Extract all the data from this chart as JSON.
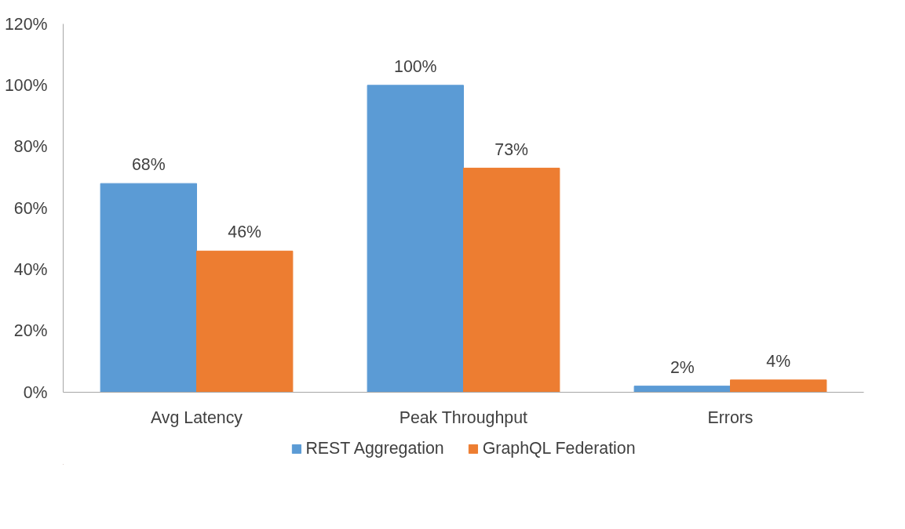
{
  "chart_data": {
    "type": "bar",
    "categories": [
      "Avg Latency",
      "Peak Throughput",
      "Errors"
    ],
    "series": [
      {
        "name": "REST Aggregation",
        "color": "#5b9bd5",
        "values": [
          68,
          100,
          2
        ],
        "value_labels": [
          "68%",
          "100%",
          "2%"
        ]
      },
      {
        "name": "GraphQL Federation",
        "color": "#ed7d31",
        "values": [
          46,
          73,
          4
        ],
        "value_labels": [
          "46%",
          "73%",
          "4%"
        ]
      }
    ],
    "ylim": [
      0,
      120
    ],
    "yticks": [
      {
        "value": 0,
        "label": "0%"
      },
      {
        "value": 20,
        "label": "20%"
      },
      {
        "value": 40,
        "label": "40%"
      },
      {
        "value": 60,
        "label": "60%"
      },
      {
        "value": 80,
        "label": "80%"
      },
      {
        "value": 100,
        "label": "100%"
      },
      {
        "value": 120,
        "label": "120%"
      }
    ],
    "grid": false,
    "legend": "bottom"
  }
}
